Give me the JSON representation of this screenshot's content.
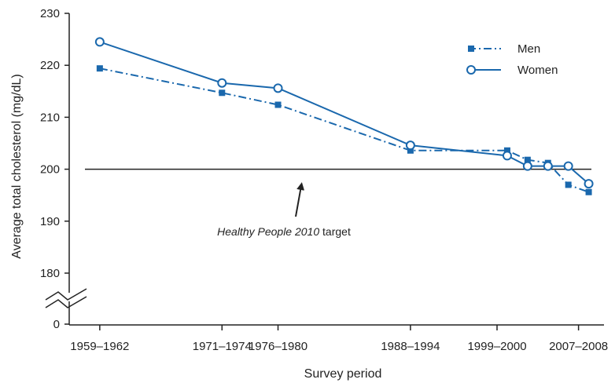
{
  "chart_data": {
    "type": "line",
    "xlabel": "Survey period",
    "ylabel": "Average total cholesterol (mg/dL)",
    "y_ticks": [
      0,
      180,
      190,
      200,
      210,
      220,
      230
    ],
    "ylim_broken": [
      180,
      230
    ],
    "x_tick_labels": [
      "1959–1962",
      "1971–1974",
      "1976–1980",
      "1988–1994",
      "1999–2000",
      "2007–2008"
    ],
    "x_tick_years": [
      1960.5,
      1972.5,
      1978,
      1991,
      1999.5,
      2007.5
    ],
    "xlim": [
      1957.5,
      2010
    ],
    "series": [
      {
        "name": "Men",
        "color": "#1a68ad",
        "marker": "square",
        "line_style": "dash-dot",
        "x": [
          1960.5,
          1972.5,
          1978,
          1991,
          2000.5,
          2002.5,
          2004.5,
          2006.5,
          2008.5
        ],
        "y": [
          219.4,
          214.7,
          212.4,
          203.6,
          203.6,
          201.8,
          201.2,
          197.0,
          195.6
        ]
      },
      {
        "name": "Women",
        "color": "#1a68ad",
        "marker": "circle",
        "line_style": "solid",
        "x": [
          1960.5,
          1972.5,
          1978,
          1991,
          2000.5,
          2002.5,
          2004.5,
          2006.5,
          2008.5
        ],
        "y": [
          224.5,
          216.6,
          215.6,
          204.6,
          202.6,
          200.6,
          200.6,
          200.6,
          197.2
        ]
      }
    ],
    "reference_line": {
      "value": 200,
      "label_italic": "Healthy People 2010",
      "label_rest": " target"
    },
    "legend_position": "top-right",
    "grid": false
  }
}
